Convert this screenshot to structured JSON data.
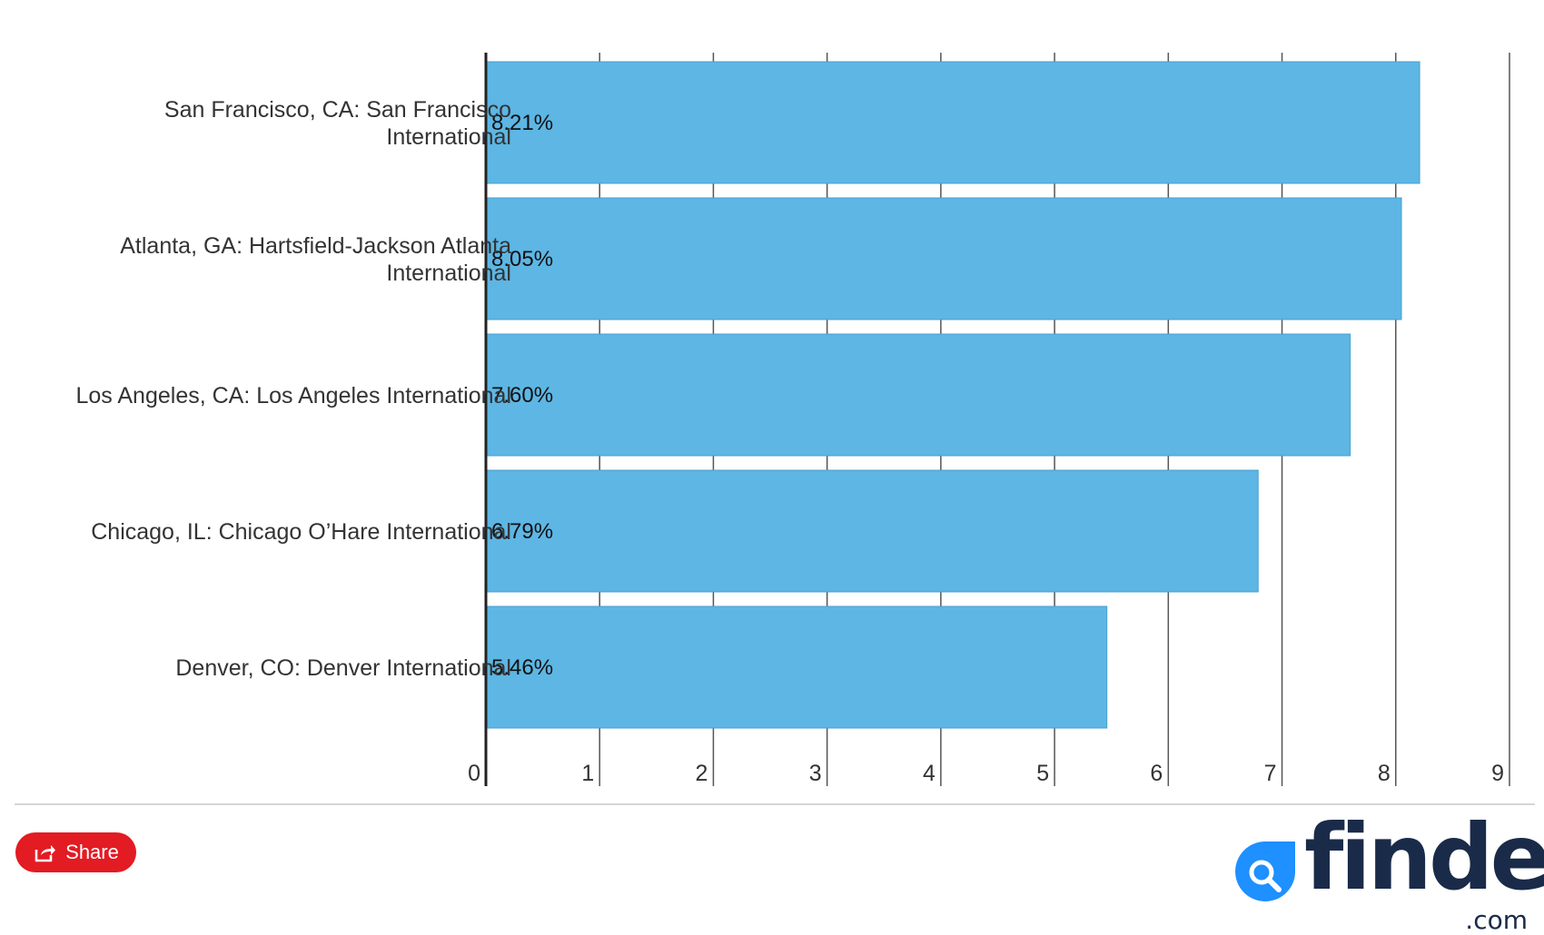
{
  "chart_data": {
    "type": "bar",
    "orientation": "horizontal",
    "categories": [
      "San Francisco, CA: San Francisco International",
      "Atlanta, GA: Hartsfield-Jackson Atlanta International",
      "Los Angeles, CA: Los Angeles International",
      "Chicago, IL: Chicago O’Hare International",
      "Denver, CO: Denver International"
    ],
    "values": [
      8.21,
      8.05,
      7.6,
      6.79,
      5.46
    ],
    "data_labels": [
      "8.21%",
      "8.05%",
      "7.60%",
      "6.79%",
      "5.46%"
    ],
    "xlim": [
      0,
      9
    ],
    "xticks": [
      "0",
      "1",
      "2",
      "3",
      "4",
      "5",
      "6",
      "7",
      "8",
      "9"
    ],
    "title": "",
    "xlabel": "",
    "ylabel": "",
    "grid": "vertical",
    "bar_color": "#5db6e4",
    "bar_border_color": "#4a9fd0"
  },
  "footer": {
    "share_label": "Share",
    "share_icon": "share-icon",
    "share_color": "#e31b23",
    "logo_text": "finder",
    "logo_suffix": ".com",
    "logo_icon": "magnifier-icon",
    "logo_color": "#1a2b49",
    "logo_accent": "#1e90ff"
  }
}
